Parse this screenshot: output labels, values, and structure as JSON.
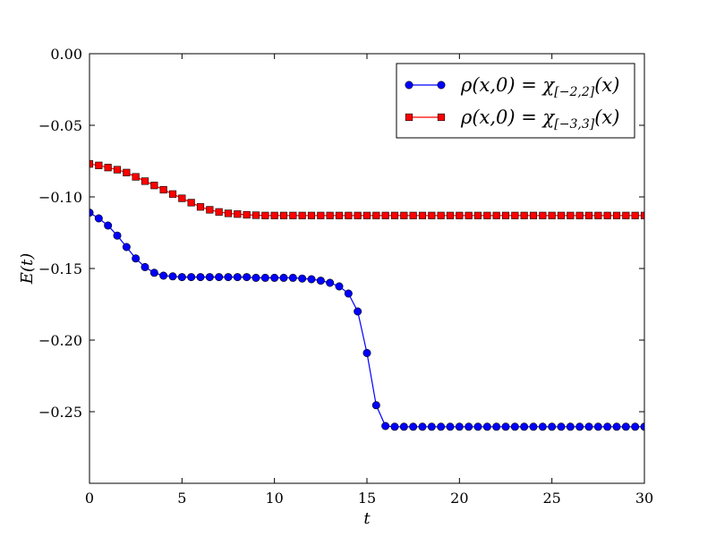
{
  "chart_data": {
    "type": "line",
    "xlabel": "t",
    "ylabel": "E(t)",
    "xlim": [
      0,
      30
    ],
    "ylim": [
      -0.3,
      0.0
    ],
    "xticks": [
      0,
      5,
      10,
      15,
      20,
      25,
      30
    ],
    "xtick_labels": [
      "0",
      "5",
      "10",
      "15",
      "20",
      "25",
      "30"
    ],
    "yticks": [
      0.0,
      -0.05,
      -0.1,
      -0.15,
      -0.2,
      -0.25
    ],
    "ytick_labels": [
      "0.00",
      "−0.05",
      "−0.10",
      "−0.15",
      "−0.20",
      "−0.25"
    ],
    "grid": false,
    "legend_position": "top-right",
    "x": [
      0,
      0.5,
      1,
      1.5,
      2,
      2.5,
      3,
      3.5,
      4,
      4.5,
      5,
      5.5,
      6,
      6.5,
      7,
      7.5,
      8,
      8.5,
      9,
      9.5,
      10,
      10.5,
      11,
      11.5,
      12,
      12.5,
      13,
      13.5,
      14,
      14.5,
      15,
      15.5,
      16,
      16.5,
      17,
      17.5,
      18,
      18.5,
      19,
      19.5,
      20,
      20.5,
      21,
      21.5,
      22,
      22.5,
      23,
      23.5,
      24,
      24.5,
      25,
      25.5,
      26,
      26.5,
      27,
      27.5,
      28,
      28.5,
      29,
      29.5,
      30
    ],
    "series": [
      {
        "name_main": "ρ(x,0) = χ",
        "name_sub": "[−2,2]",
        "name_tail": "(x)",
        "color": "#0000ff",
        "marker": "circle",
        "values": [
          -0.111,
          -0.115,
          -0.12,
          -0.127,
          -0.135,
          -0.143,
          -0.149,
          -0.153,
          -0.155,
          -0.1555,
          -0.156,
          -0.156,
          -0.156,
          -0.156,
          -0.156,
          -0.156,
          -0.156,
          -0.156,
          -0.1565,
          -0.1565,
          -0.1565,
          -0.1565,
          -0.1565,
          -0.157,
          -0.1575,
          -0.1585,
          -0.16,
          -0.1625,
          -0.1675,
          -0.18,
          -0.209,
          -0.2455,
          -0.26,
          -0.2605,
          -0.2605,
          -0.2605,
          -0.2605,
          -0.2605,
          -0.2605,
          -0.2605,
          -0.2605,
          -0.2605,
          -0.2605,
          -0.2605,
          -0.2605,
          -0.2605,
          -0.2605,
          -0.2605,
          -0.2605,
          -0.2605,
          -0.2605,
          -0.2605,
          -0.2605,
          -0.2605,
          -0.2605,
          -0.2605,
          -0.2605,
          -0.2605,
          -0.2605,
          -0.2605,
          -0.2605
        ]
      },
      {
        "name_main": "ρ(x,0) = χ",
        "name_sub": "[−3,3]",
        "name_tail": "(x)",
        "color": "#ff0000",
        "marker": "square",
        "values": [
          -0.077,
          -0.078,
          -0.0795,
          -0.081,
          -0.083,
          -0.086,
          -0.089,
          -0.092,
          -0.095,
          -0.098,
          -0.101,
          -0.104,
          -0.107,
          -0.109,
          -0.1105,
          -0.1115,
          -0.112,
          -0.1125,
          -0.1128,
          -0.113,
          -0.113,
          -0.113,
          -0.113,
          -0.113,
          -0.113,
          -0.113,
          -0.113,
          -0.113,
          -0.113,
          -0.113,
          -0.113,
          -0.113,
          -0.113,
          -0.113,
          -0.113,
          -0.113,
          -0.113,
          -0.113,
          -0.113,
          -0.113,
          -0.113,
          -0.113,
          -0.113,
          -0.113,
          -0.113,
          -0.113,
          -0.113,
          -0.113,
          -0.113,
          -0.113,
          -0.113,
          -0.113,
          -0.113,
          -0.113,
          -0.113,
          -0.113,
          -0.113,
          -0.113,
          -0.113,
          -0.113,
          -0.113
        ]
      }
    ]
  }
}
